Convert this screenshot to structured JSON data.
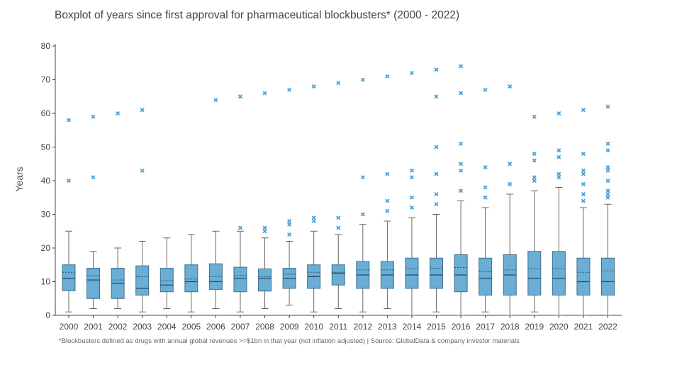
{
  "chart_data": {
    "type": "box",
    "title": "Boxplot of years since first approval for pharmaceutical blockbusters* (2000 - 2022)",
    "footnote": "*Blockbusters defined as drugs with annual global revenues >=$1bn in that year (not inflation adjusted) | Source: GlobalData & company investor materials",
    "ylabel": "Years",
    "xlabel": "",
    "ylim": [
      0,
      80
    ],
    "yticks": [
      0,
      10,
      20,
      30,
      40,
      50,
      60,
      70,
      80
    ],
    "grid": false,
    "colors": {
      "box_fill": "#6aaed6",
      "box_stroke": "#3f6f8f",
      "outlier": "#4a9fd6",
      "whisker": "#666666",
      "axis": "#444444"
    },
    "categories": [
      "2000",
      "2001",
      "2002",
      "2003",
      "2004",
      "2005",
      "2006",
      "2007",
      "2008",
      "2009",
      "2010",
      "2011",
      "2012",
      "2013",
      "2014",
      "2015",
      "2016",
      "2017",
      "2018",
      "2019",
      "2020",
      "2021",
      "2022"
    ],
    "boxes": [
      {
        "min": 1,
        "q1": 7.3,
        "median": 11,
        "mean": 12.8,
        "q3": 15,
        "max": 25,
        "outliers": [
          40,
          58
        ]
      },
      {
        "min": 2,
        "q1": 5,
        "median": 10.5,
        "mean": 11.8,
        "q3": 14,
        "max": 19,
        "outliers": [
          41,
          59
        ]
      },
      {
        "min": 2,
        "q1": 5,
        "median": 9.5,
        "mean": 10.5,
        "q3": 14,
        "max": 20,
        "outliers": [
          60
        ]
      },
      {
        "min": 1,
        "q1": 6,
        "median": 8,
        "mean": 11.5,
        "q3": 14.7,
        "max": 22,
        "outliers": [
          43,
          61
        ]
      },
      {
        "min": 2,
        "q1": 7,
        "median": 9,
        "mean": 10.3,
        "q3": 14,
        "max": 23,
        "outliers": []
      },
      {
        "min": 1,
        "q1": 7,
        "median": 10,
        "mean": 10.8,
        "q3": 15,
        "max": 24,
        "outliers": []
      },
      {
        "min": 2,
        "q1": 7.7,
        "median": 10,
        "mean": 11.5,
        "q3": 15.3,
        "max": 25,
        "outliers": [
          64
        ]
      },
      {
        "min": 1,
        "q1": 7,
        "median": 11,
        "mean": 11.8,
        "q3": 14.3,
        "max": 25,
        "outliers": [
          26,
          65
        ]
      },
      {
        "min": 2,
        "q1": 7.2,
        "median": 11,
        "mean": 11.5,
        "q3": 13.8,
        "max": 23,
        "outliers": [
          25,
          26,
          66
        ]
      },
      {
        "min": 3,
        "q1": 8,
        "median": 11,
        "mean": 12.2,
        "q3": 14,
        "max": 22,
        "outliers": [
          24,
          27,
          28,
          67
        ]
      },
      {
        "min": 1,
        "q1": 8,
        "median": 11.5,
        "mean": 12.8,
        "q3": 15,
        "max": 25,
        "outliers": [
          28,
          29,
          68
        ]
      },
      {
        "min": 2,
        "q1": 9,
        "median": 12.5,
        "mean": 12.8,
        "q3": 15,
        "max": 24,
        "outliers": [
          26,
          29,
          69
        ]
      },
      {
        "min": 1,
        "q1": 8,
        "median": 12,
        "mean": 13.5,
        "q3": 16,
        "max": 27,
        "outliers": [
          30,
          41,
          70
        ]
      },
      {
        "min": 2,
        "q1": 8,
        "median": 12,
        "mean": 13.5,
        "q3": 16,
        "max": 28,
        "outliers": [
          31,
          34,
          42,
          71
        ]
      },
      {
        "min": 0,
        "q1": 8,
        "median": 12,
        "mean": 13.8,
        "q3": 17,
        "max": 29,
        "outliers": [
          32,
          35,
          41,
          43,
          72
        ]
      },
      {
        "min": 1,
        "q1": 8,
        "median": 12,
        "mean": 14,
        "q3": 17,
        "max": 30,
        "outliers": [
          33,
          36,
          42,
          50,
          65,
          73
        ]
      },
      {
        "min": 0,
        "q1": 7,
        "median": 12,
        "mean": 14.2,
        "q3": 18,
        "max": 34,
        "outliers": [
          37,
          43,
          45,
          51,
          66,
          74
        ]
      },
      {
        "min": 1,
        "q1": 6,
        "median": 11,
        "mean": 13,
        "q3": 17,
        "max": 32,
        "outliers": [
          35,
          38,
          44,
          67
        ]
      },
      {
        "min": 0,
        "q1": 6,
        "median": 12,
        "mean": 13.5,
        "q3": 18,
        "max": 36,
        "outliers": [
          39,
          45,
          68
        ]
      },
      {
        "min": 1,
        "q1": 6,
        "median": 11,
        "mean": 13.8,
        "q3": 19,
        "max": 37,
        "outliers": [
          40,
          41,
          46,
          48,
          59
        ]
      },
      {
        "min": 0,
        "q1": 6,
        "median": 11,
        "mean": 13.8,
        "q3": 19,
        "max": 38,
        "outliers": [
          41,
          42,
          47,
          49,
          60
        ]
      },
      {
        "min": 0,
        "q1": 6,
        "median": 10,
        "mean": 12.8,
        "q3": 17,
        "max": 32,
        "outliers": [
          34,
          36,
          39,
          42,
          43,
          48,
          61
        ]
      },
      {
        "min": 0,
        "q1": 6,
        "median": 10,
        "mean": 13.2,
        "q3": 17,
        "max": 33,
        "outliers": [
          35,
          36,
          37,
          40,
          43,
          44,
          49,
          51,
          62
        ]
      }
    ]
  }
}
